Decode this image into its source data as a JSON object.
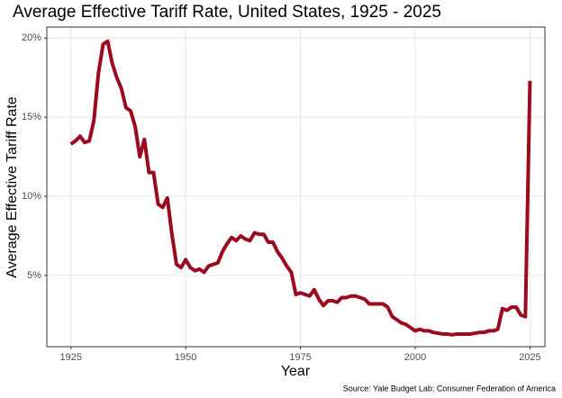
{
  "chart_data": {
    "type": "line",
    "title": "Average Effective Tariff Rate, United States, 1925 - 2025",
    "x_label": "Year",
    "y_label": "Average Effective Tariff Rate",
    "source": "Source: Yale Budget Lab; Consumer Federation of America",
    "x": [
      1925,
      1926,
      1927,
      1928,
      1929,
      1930,
      1931,
      1932,
      1933,
      1934,
      1935,
      1936,
      1937,
      1938,
      1939,
      1940,
      1941,
      1942,
      1943,
      1944,
      1945,
      1946,
      1947,
      1948,
      1949,
      1950,
      1951,
      1952,
      1953,
      1954,
      1955,
      1956,
      1957,
      1958,
      1959,
      1960,
      1961,
      1962,
      1963,
      1964,
      1965,
      1966,
      1967,
      1968,
      1969,
      1970,
      1971,
      1972,
      1973,
      1974,
      1975,
      1976,
      1977,
      1978,
      1979,
      1980,
      1981,
      1982,
      1983,
      1984,
      1985,
      1986,
      1987,
      1988,
      1989,
      1990,
      1991,
      1992,
      1993,
      1994,
      1995,
      1996,
      1997,
      1998,
      1999,
      2000,
      2001,
      2002,
      2003,
      2004,
      2005,
      2006,
      2007,
      2008,
      2009,
      2010,
      2011,
      2012,
      2013,
      2014,
      2015,
      2016,
      2017,
      2018,
      2019,
      2020,
      2021,
      2022,
      2023,
      2024,
      2025
    ],
    "series": [
      {
        "name": "Average Effective Tariff Rate",
        "color": "#9b0a1e",
        "values": [
          13.3,
          13.5,
          13.8,
          13.4,
          13.5,
          14.8,
          17.8,
          19.6,
          19.8,
          18.4,
          17.5,
          16.8,
          15.6,
          15.4,
          14.4,
          12.5,
          13.6,
          11.5,
          11.5,
          9.5,
          9.3,
          9.9,
          7.6,
          5.7,
          5.5,
          6.0,
          5.5,
          5.3,
          5.4,
          5.2,
          5.6,
          5.7,
          5.8,
          6.5,
          7.0,
          7.4,
          7.2,
          7.5,
          7.3,
          7.2,
          7.7,
          7.6,
          7.6,
          7.1,
          7.1,
          6.5,
          6.1,
          5.6,
          5.2,
          3.8,
          3.9,
          3.8,
          3.7,
          4.1,
          3.5,
          3.1,
          3.4,
          3.4,
          3.3,
          3.6,
          3.6,
          3.7,
          3.7,
          3.6,
          3.5,
          3.2,
          3.2,
          3.2,
          3.2,
          3.0,
          2.4,
          2.2,
          2.0,
          1.9,
          1.7,
          1.5,
          1.6,
          1.5,
          1.5,
          1.4,
          1.35,
          1.3,
          1.3,
          1.25,
          1.3,
          1.3,
          1.3,
          1.3,
          1.35,
          1.4,
          1.4,
          1.5,
          1.5,
          1.6,
          2.9,
          2.8,
          3.0,
          3.0,
          2.5,
          2.4,
          17.3
        ]
      }
    ],
    "xlim": [
      1919.75,
      2028.25
    ],
    "ylim": [
      0.5,
      20.7
    ],
    "xticks": [
      1925,
      1950,
      1975,
      2000,
      2025
    ],
    "yticks": [
      {
        "value": 5,
        "label": "5%"
      },
      {
        "value": 10,
        "label": "10%"
      },
      {
        "value": 15,
        "label": "15%"
      },
      {
        "value": 20,
        "label": "20%"
      }
    ],
    "grid": true
  }
}
